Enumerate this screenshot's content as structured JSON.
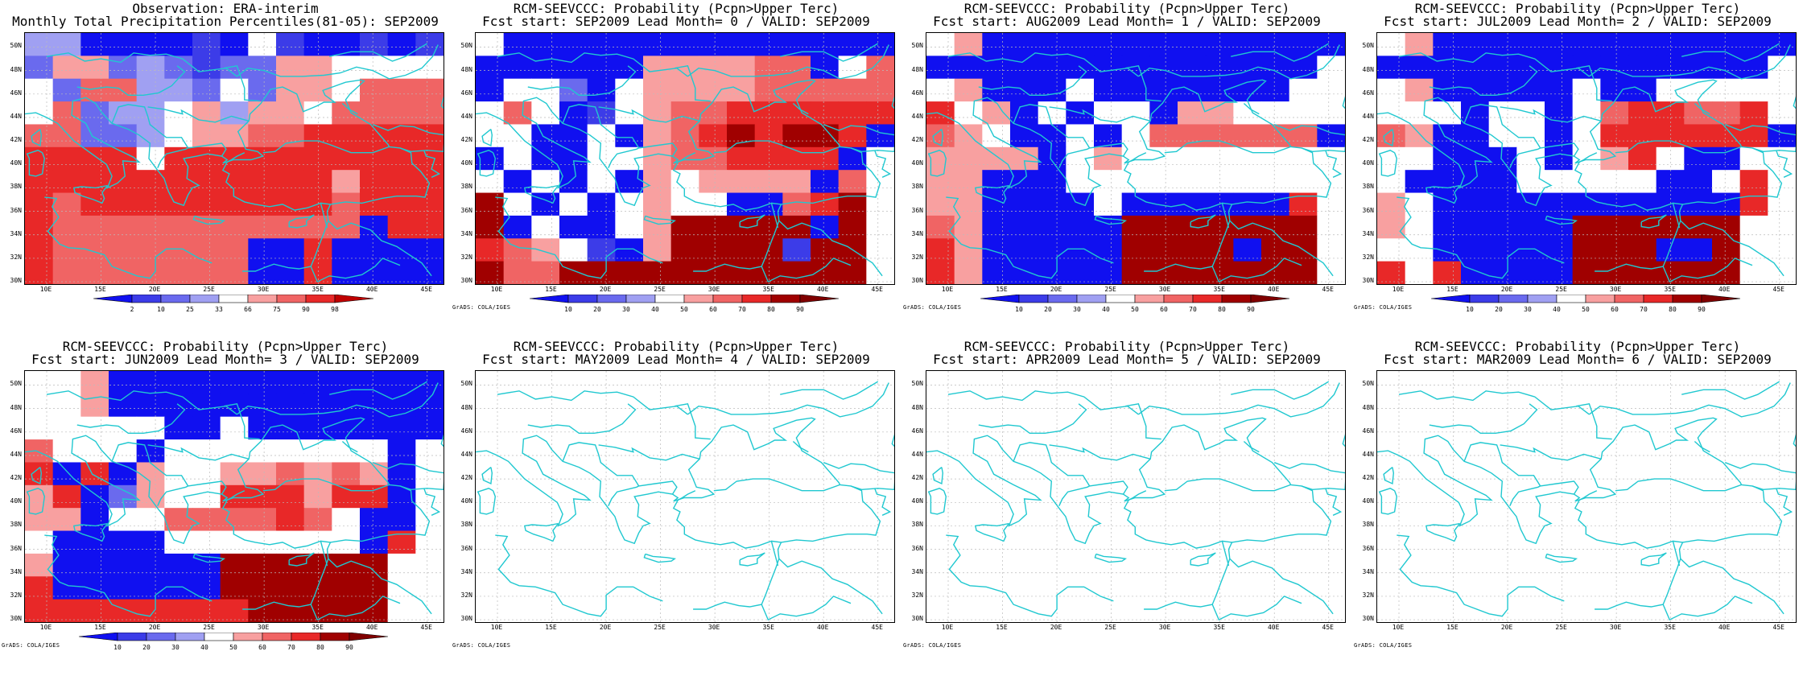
{
  "panels": [
    {
      "title1": "Observation: ERA-interim",
      "title2": "Monthly Total Precipitation Percentiles(81-05): SEP2009",
      "scale": "percentile",
      "credit": ""
    },
    {
      "title1": "RCM-SEEVCCC: Probability (Pcpn>Upper Terc)",
      "title2": "Fcst start: SEP2009  Lead Month= 0 / VALID: SEP2009",
      "scale": "prob",
      "credit": "GrADS: COLA/IGES"
    },
    {
      "title1": "RCM-SEEVCCC: Probability (Pcpn>Upper Terc)",
      "title2": "Fcst start: AUG2009  Lead Month= 1 / VALID: SEP2009",
      "scale": "prob",
      "credit": "GrADS: COLA/IGES"
    },
    {
      "title1": "RCM-SEEVCCC: Probability (Pcpn>Upper Terc)",
      "title2": "Fcst start: JUL2009  Lead Month= 2 / VALID: SEP2009",
      "scale": "prob",
      "credit": "GrADS: COLA/IGES"
    },
    {
      "title1": "RCM-SEEVCCC: Probability (Pcpn>Upper Terc)",
      "title2": "Fcst start: JUN2009  Lead Month= 3 / VALID: SEP2009",
      "scale": "prob",
      "credit": "GrADS: COLA/IGES"
    },
    {
      "title1": "RCM-SEEVCCC: Probability (Pcpn>Upper Terc)",
      "title2": "Fcst start: MAY2009  Lead Month= 4 / VALID: SEP2009",
      "scale": "",
      "credit": "GrADS: COLA/IGES"
    },
    {
      "title1": "RCM-SEEVCCC: Probability (Pcpn>Upper Terc)",
      "title2": "Fcst start: APR2009  Lead Month= 5 / VALID: SEP2009",
      "scale": "",
      "credit": "GrADS: COLA/IGES"
    },
    {
      "title1": "RCM-SEEVCCC: Probability (Pcpn>Upper Terc)",
      "title2": "Fcst start: MAR2009  Lead Month= 6 / VALID: SEP2009",
      "scale": "",
      "credit": "GrADS: COLA/IGES"
    }
  ],
  "lat_labels": [
    "50N",
    "48N",
    "46N",
    "44N",
    "42N",
    "40N",
    "38N",
    "36N",
    "34N",
    "32N",
    "30N"
  ],
  "lon_labels": [
    "10E",
    "15E",
    "20E",
    "25E",
    "30E",
    "35E",
    "40E",
    "45E"
  ],
  "colorbars": {
    "percentile": {
      "labels": [
        "2",
        "10",
        "25",
        "33",
        "66",
        "75",
        "90",
        "98"
      ],
      "colors": [
        "#1010f0",
        "#3c3ce8",
        "#6a6aee",
        "#a0a0f2",
        "#ffffff",
        "#f8a0a0",
        "#f06464",
        "#e82828",
        "#c00000"
      ]
    },
    "prob": {
      "labels": [
        "10",
        "20",
        "30",
        "40",
        "50",
        "60",
        "70",
        "80",
        "90"
      ],
      "colors": [
        "#1010f0",
        "#3c3ce8",
        "#6a6aee",
        "#a0a0f2",
        "#ffffff",
        "#f8a0a0",
        "#f06464",
        "#e82828",
        "#a00000",
        "#800000"
      ]
    }
  },
  "colors": {
    "coast": "#20c8d0",
    "grid": "#bbbbbb"
  }
}
